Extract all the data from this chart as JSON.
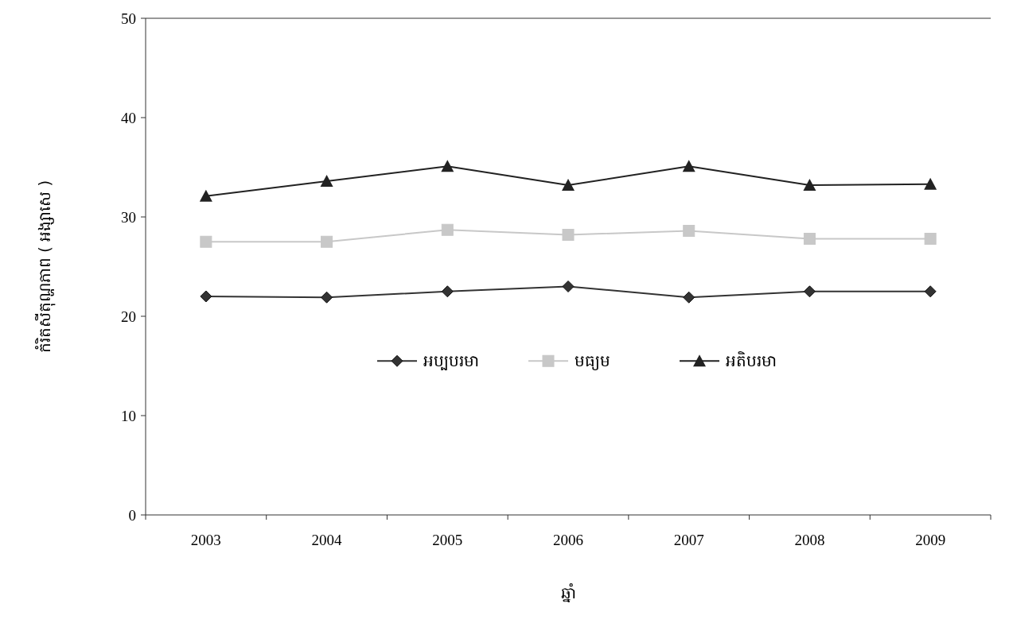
{
  "chart_data": {
    "type": "line",
    "xlabel": "ឆ្នាំ",
    "ylabel": "កំរិតសីតុណ្ហភាព ( អង្សាសេ )",
    "categories": [
      "2003",
      "2004",
      "2005",
      "2006",
      "2007",
      "2008",
      "2009"
    ],
    "series": [
      {
        "name": "អប្បបរមា",
        "color": "#333333",
        "marker": "diamond",
        "values": [
          22.0,
          21.9,
          22.5,
          23.0,
          21.9,
          22.5,
          22.5
        ]
      },
      {
        "name": "មធ្យម",
        "color": "#c8c8c8",
        "marker": "square",
        "values": [
          27.5,
          27.5,
          28.7,
          28.2,
          28.6,
          27.8,
          27.8
        ]
      },
      {
        "name": "អតិបរមា",
        "color": "#222222",
        "marker": "triangle",
        "values": [
          32.1,
          33.6,
          35.1,
          33.2,
          35.1,
          33.2,
          33.3
        ]
      }
    ],
    "ylim": [
      0,
      50
    ],
    "yticks": [
      0,
      10,
      20,
      30,
      40,
      50
    ],
    "grid": false,
    "legend": "bottom"
  }
}
